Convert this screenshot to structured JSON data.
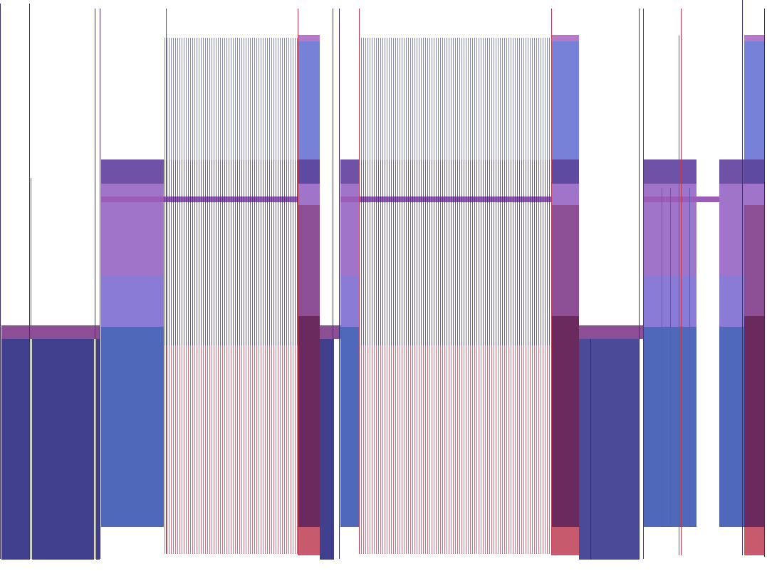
{
  "figure": {
    "description_colors": {
      "navy": "#40408f",
      "royal_blue": "#4f68b9",
      "periwinkle": "#8a7bd6",
      "violet": "#a074c8",
      "dark_violet": "#6e52a6",
      "plum": "#8c4f96",
      "wine": "#6b2a5e",
      "rose": "#c85a6e",
      "light_blue": "#7681d8",
      "outline_red": "#c0394b"
    }
  }
}
